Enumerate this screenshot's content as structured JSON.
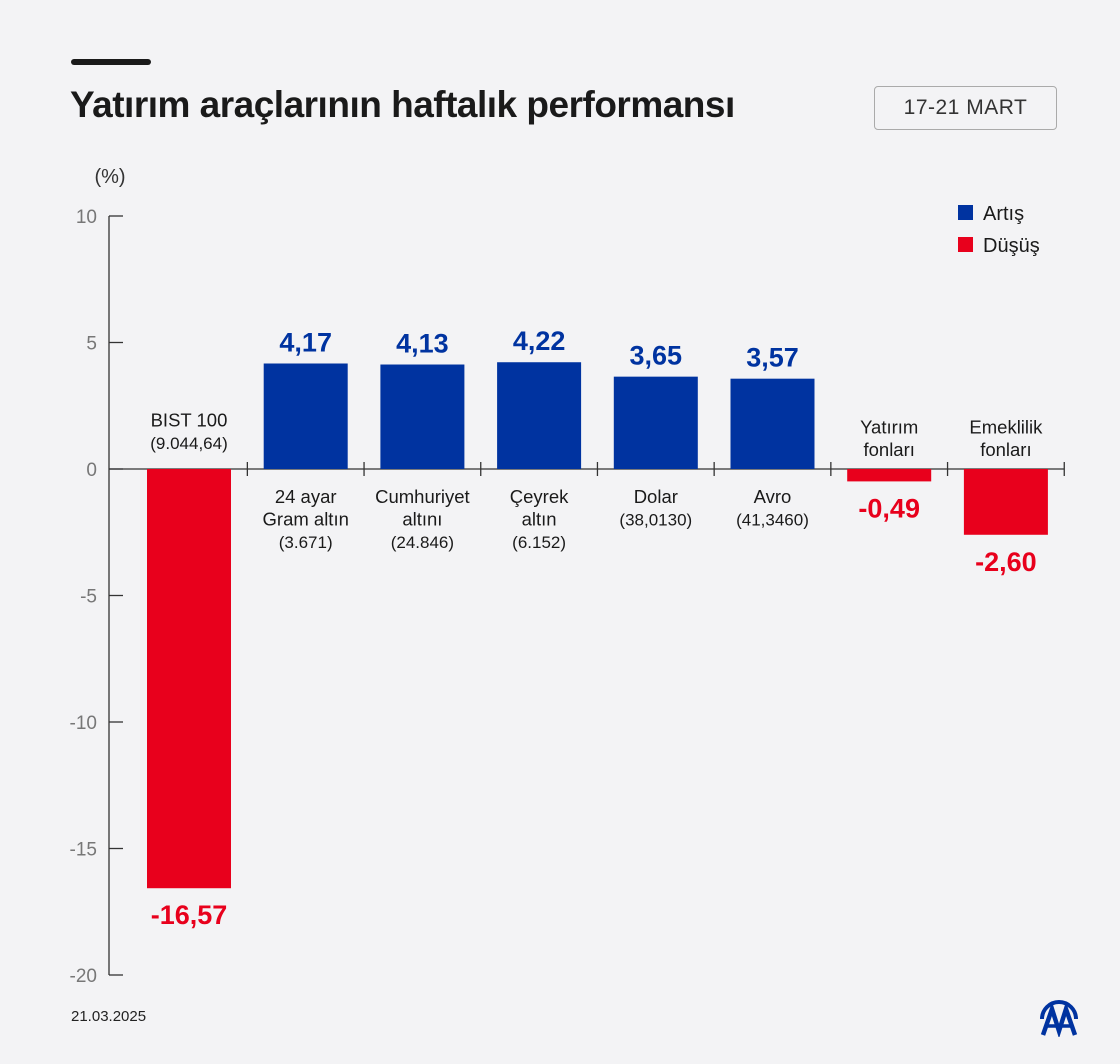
{
  "header": {
    "title": "Yatırım araçlarının haftalık performansı",
    "date_range": "17-21 MART"
  },
  "footer": {
    "date": "21.03.2025",
    "logo_text": "AA"
  },
  "colors": {
    "increase": "#0033a0",
    "decrease": "#e8001c"
  },
  "chart_data": {
    "type": "bar",
    "ylabel": "(%)",
    "ylim": [
      -20,
      10
    ],
    "yticks": [
      10,
      5,
      0,
      -5,
      -10,
      -15,
      -20
    ],
    "grid": false,
    "legend": {
      "position": "top-right",
      "entries": [
        "Artış",
        "Düşüş"
      ]
    },
    "categories": [
      [
        "BIST 100",
        "(9.044,64)"
      ],
      [
        "24 ayar",
        "Gram altın",
        "(3.671)"
      ],
      [
        "Cumhuriyet",
        "altını",
        "(24.846)"
      ],
      [
        "Çeyrek",
        "altın",
        "(6.152)"
      ],
      [
        "Dolar",
        "(38,0130)"
      ],
      [
        "Avro",
        "(41,3460)"
      ],
      [
        "Yatırım",
        "fonları"
      ],
      [
        "Emeklilik",
        "fonları"
      ]
    ],
    "values": [
      -16.57,
      4.17,
      4.13,
      4.22,
      3.65,
      3.57,
      -0.49,
      -2.6
    ],
    "value_labels": [
      "-16,57",
      "4,17",
      "4,13",
      "4,22",
      "3,65",
      "3,57",
      "-0,49",
      "-2,60"
    ]
  }
}
